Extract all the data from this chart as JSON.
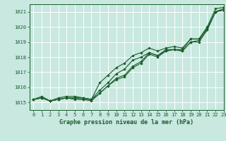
{
  "title": "Graphe pression niveau de la mer (hPa)",
  "bg_color": "#c8e8e0",
  "grid_color": "#ffffff",
  "line_color": "#1a5c2a",
  "xlim": [
    -0.5,
    23
  ],
  "ylim": [
    1014.5,
    1021.5
  ],
  "yticks": [
    1015,
    1016,
    1017,
    1018,
    1019,
    1020,
    1021
  ],
  "xticks": [
    0,
    1,
    2,
    3,
    4,
    5,
    6,
    7,
    8,
    9,
    10,
    11,
    12,
    13,
    14,
    15,
    16,
    17,
    18,
    19,
    20,
    21,
    22,
    23
  ],
  "series": [
    [
      1015.2,
      1015.3,
      1015.1,
      1015.2,
      1015.3,
      1015.3,
      1015.2,
      1015.2,
      1015.8,
      1016.3,
      1016.9,
      1017.2,
      1017.8,
      1018.0,
      1018.3,
      1018.1,
      1018.5,
      1018.5,
      1018.5,
      1019.2,
      1019.2,
      1020.0,
      1021.2,
      1021.3
    ],
    [
      1015.2,
      1015.4,
      1015.1,
      1015.3,
      1015.4,
      1015.4,
      1015.3,
      1015.2,
      1016.3,
      1016.8,
      1017.3,
      1017.6,
      1018.1,
      1018.3,
      1018.6,
      1018.4,
      1018.6,
      1018.7,
      1018.6,
      1019.2,
      1019.2,
      1019.9,
      1021.0,
      1021.2
    ],
    [
      1015.2,
      1015.3,
      1015.1,
      1015.2,
      1015.3,
      1015.2,
      1015.2,
      1015.1,
      1015.6,
      1016.1,
      1016.5,
      1016.7,
      1017.3,
      1017.6,
      1018.2,
      1018.0,
      1018.4,
      1018.5,
      1018.4,
      1019.0,
      1019.1,
      1019.8,
      1021.0,
      1021.1
    ],
    [
      1015.2,
      1015.3,
      1015.1,
      1015.2,
      1015.3,
      1015.3,
      1015.3,
      1015.2,
      1015.6,
      1016.1,
      1016.6,
      1016.8,
      1017.4,
      1017.7,
      1018.3,
      1018.1,
      1018.4,
      1018.5,
      1018.4,
      1019.0,
      1019.0,
      1019.8,
      1021.0,
      1021.2
    ]
  ]
}
